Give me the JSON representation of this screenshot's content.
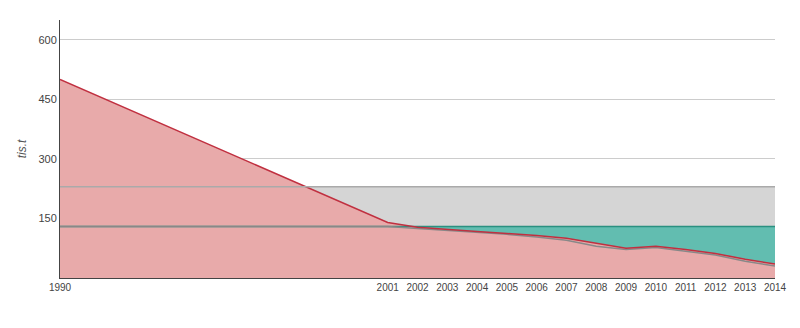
{
  "chart_data": {
    "type": "area",
    "x": [
      1990,
      2001,
      2002,
      2003,
      2004,
      2005,
      2006,
      2007,
      2008,
      2009,
      2010,
      2011,
      2012,
      2013,
      2014
    ],
    "series": [
      {
        "type": "area",
        "color": "#d5d5d5",
        "values": [
          230,
          230,
          230,
          230,
          230,
          230,
          230,
          230,
          230,
          230,
          230,
          230,
          230,
          230,
          230
        ]
      },
      {
        "type": "area",
        "color": "#62bdb0",
        "values": [
          130,
          130,
          130,
          130,
          130,
          130,
          130,
          130,
          130,
          130,
          130,
          130,
          130,
          130,
          130
        ]
      },
      {
        "type": "area",
        "color": "#e8aaaa",
        "values": [
          500,
          140,
          128,
          122,
          117,
          112,
          107,
          100,
          88,
          75,
          80,
          72,
          62,
          47,
          35
        ]
      },
      {
        "type": "line",
        "color": "#2a9080",
        "values": [
          130,
          130,
          130,
          130,
          130,
          130,
          130,
          130,
          130,
          130,
          130,
          130,
          130,
          130,
          130
        ]
      },
      {
        "type": "line",
        "color": "#888888",
        "values": [
          130,
          130,
          125,
          120,
          115,
          110,
          103,
          95,
          80,
          72,
          77,
          68,
          58,
          42,
          30
        ]
      },
      {
        "type": "line",
        "color": "#c03040",
        "values": [
          500,
          140,
          128,
          122,
          117,
          112,
          107,
          100,
          88,
          75,
          80,
          72,
          62,
          47,
          35
        ]
      },
      {
        "type": "line",
        "color": "#aaaaaa",
        "values": [
          230,
          230,
          230,
          230,
          230,
          230,
          230,
          230,
          230,
          230,
          230,
          230,
          230,
          230,
          230
        ]
      }
    ],
    "ylabel": "tis.t",
    "xlim": [
      1990,
      2014
    ],
    "xticks": [
      1990,
      2001,
      2002,
      2003,
      2004,
      2005,
      2006,
      2007,
      2008,
      2009,
      2010,
      2011,
      2012,
      2013,
      2014
    ],
    "ylim": [
      0,
      650
    ],
    "yticks": [
      150,
      300,
      450,
      600
    ],
    "grid": true
  }
}
